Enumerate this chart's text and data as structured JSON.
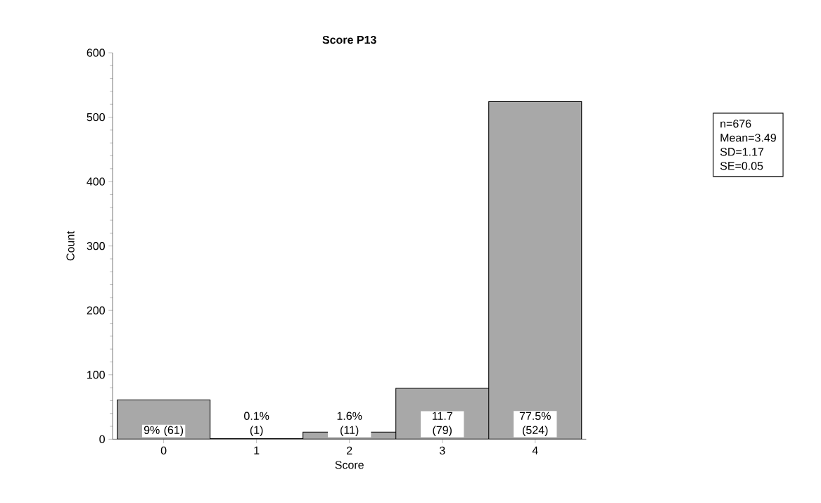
{
  "chart_data": {
    "type": "bar",
    "title": "Score P13",
    "xlabel": "Score",
    "ylabel": "Count",
    "categories": [
      "0",
      "1",
      "2",
      "3",
      "4"
    ],
    "values": [
      61,
      1,
      11,
      79,
      524
    ],
    "value_labels": [
      "9% (61)",
      "0.1% (1)",
      "1.6% (11)",
      "11.7 (79)",
      "77.5% (524)"
    ],
    "color": "#a8a8a8",
    "ylim": [
      0,
      600
    ],
    "yticks": [
      0,
      100,
      200,
      300,
      400,
      500,
      600
    ],
    "annotations": [
      "n=676",
      "Mean=3.49",
      "SD=1.17",
      "SE=0.05"
    ]
  }
}
